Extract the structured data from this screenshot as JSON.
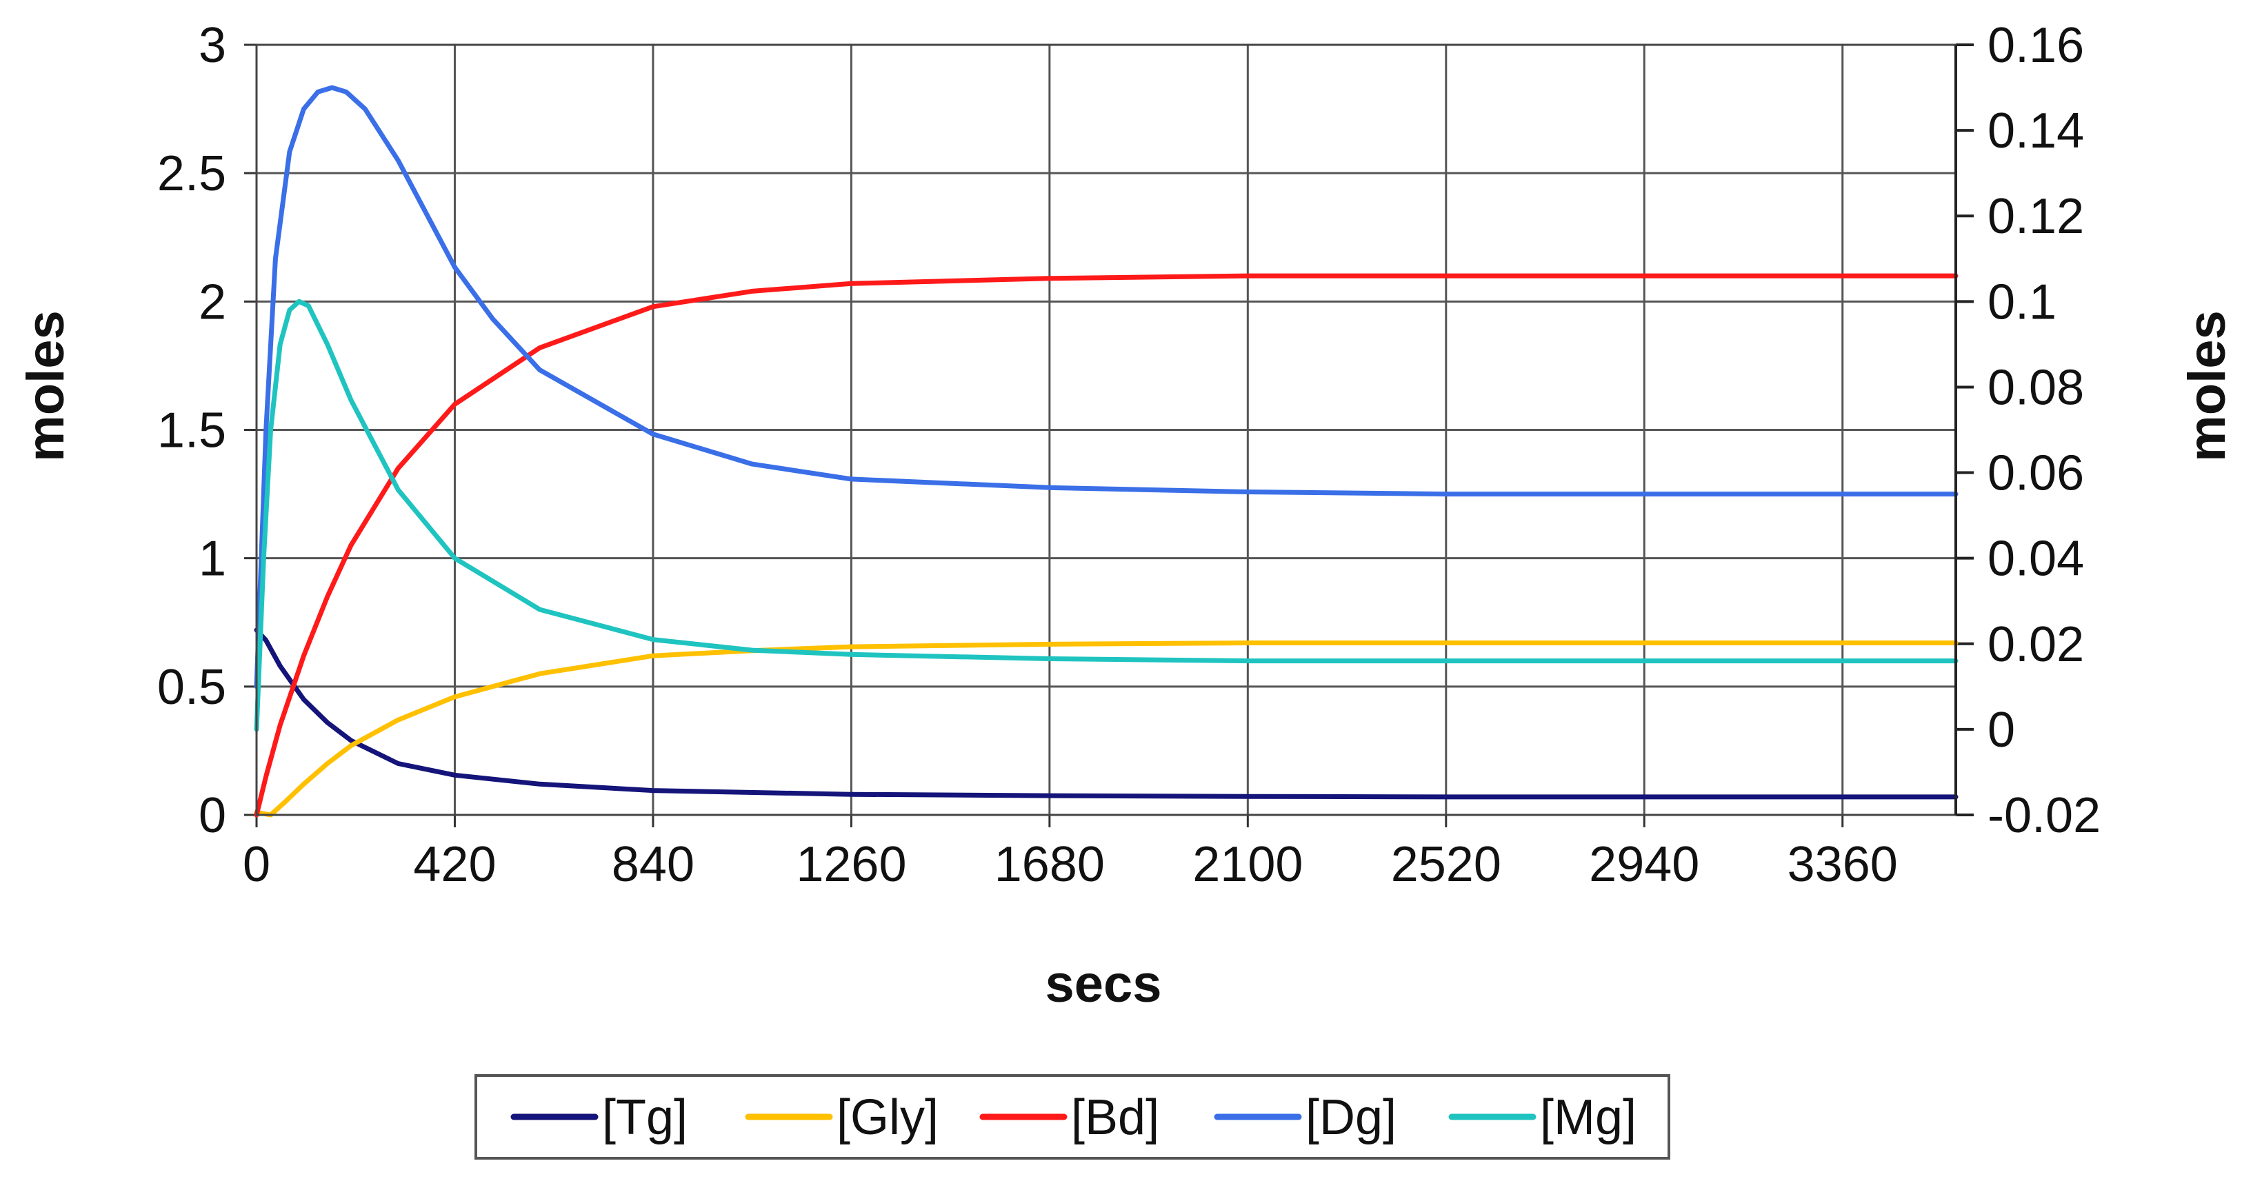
{
  "chart_data": {
    "type": "line",
    "xlabel": "secs",
    "ylabel_left": "moles",
    "ylabel_right": "moles",
    "xlim": [
      0,
      3600
    ],
    "ylim_left": [
      0,
      3
    ],
    "ylim_right": [
      -0.02,
      0.16
    ],
    "grid": true,
    "legend_position": "bottom",
    "x_ticks": [
      0,
      420,
      840,
      1260,
      1680,
      2100,
      2520,
      2940,
      3360
    ],
    "x_tick_labels": [
      "0",
      "420",
      "840",
      "1260",
      "1680",
      "2100",
      "2520",
      "2940",
      "3360"
    ],
    "y_left_ticks": [
      0,
      0.5,
      1,
      1.5,
      2,
      2.5,
      3
    ],
    "y_left_tick_labels": [
      "0",
      "0.5",
      "1",
      "1.5",
      "2",
      "2.5",
      "3"
    ],
    "y_right_ticks": [
      -0.02,
      0,
      0.02,
      0.04,
      0.06,
      0.08,
      0.1,
      0.12,
      0.14,
      0.16
    ],
    "y_right_tick_labels": [
      "-0.02",
      "0",
      "0.02",
      "0.04",
      "0.06",
      "0.08",
      "0.1",
      "0.12",
      "0.14",
      "0.16"
    ],
    "series": [
      {
        "name": "[Tg]",
        "color": "#14147a",
        "axis": "left",
        "points": [
          [
            0,
            0.72
          ],
          [
            20,
            0.68
          ],
          [
            50,
            0.58
          ],
          [
            100,
            0.45
          ],
          [
            150,
            0.36
          ],
          [
            200,
            0.29
          ],
          [
            300,
            0.2
          ],
          [
            420,
            0.155
          ],
          [
            600,
            0.12
          ],
          [
            840,
            0.095
          ],
          [
            1260,
            0.08
          ],
          [
            1680,
            0.075
          ],
          [
            2100,
            0.072
          ],
          [
            2520,
            0.07
          ],
          [
            3000,
            0.07
          ],
          [
            3600,
            0.07
          ]
        ]
      },
      {
        "name": "[Gly]",
        "color": "#ffc000",
        "axis": "left",
        "points": [
          [
            0,
            0.01
          ],
          [
            30,
            0.0
          ],
          [
            60,
            0.05
          ],
          [
            100,
            0.12
          ],
          [
            150,
            0.2
          ],
          [
            200,
            0.27
          ],
          [
            300,
            0.37
          ],
          [
            420,
            0.46
          ],
          [
            600,
            0.55
          ],
          [
            840,
            0.62
          ],
          [
            1050,
            0.64
          ],
          [
            1260,
            0.655
          ],
          [
            1680,
            0.665
          ],
          [
            2100,
            0.67
          ],
          [
            2520,
            0.67
          ],
          [
            3000,
            0.67
          ],
          [
            3600,
            0.67
          ]
        ]
      },
      {
        "name": "[Bd]",
        "color": "#ff1a1a",
        "axis": "left",
        "points": [
          [
            0,
            0.0
          ],
          [
            20,
            0.15
          ],
          [
            50,
            0.35
          ],
          [
            100,
            0.62
          ],
          [
            150,
            0.85
          ],
          [
            200,
            1.05
          ],
          [
            300,
            1.35
          ],
          [
            420,
            1.6
          ],
          [
            600,
            1.82
          ],
          [
            840,
            1.98
          ],
          [
            1050,
            2.04
          ],
          [
            1260,
            2.07
          ],
          [
            1680,
            2.09
          ],
          [
            2100,
            2.1
          ],
          [
            2520,
            2.1
          ],
          [
            3000,
            2.1
          ],
          [
            3600,
            2.1
          ]
        ]
      },
      {
        "name": "[Dg]",
        "color": "#3a6fe8",
        "axis": "right",
        "points": [
          [
            0,
            0.01
          ],
          [
            20,
            0.07
          ],
          [
            40,
            0.11
          ],
          [
            70,
            0.135
          ],
          [
            100,
            0.145
          ],
          [
            130,
            0.149
          ],
          [
            160,
            0.15
          ],
          [
            190,
            0.149
          ],
          [
            230,
            0.145
          ],
          [
            300,
            0.133
          ],
          [
            420,
            0.108
          ],
          [
            500,
            0.096
          ],
          [
            600,
            0.084
          ],
          [
            840,
            0.069
          ],
          [
            1050,
            0.062
          ],
          [
            1260,
            0.0585
          ],
          [
            1680,
            0.0565
          ],
          [
            2100,
            0.0555
          ],
          [
            2520,
            0.055
          ],
          [
            3000,
            0.055
          ],
          [
            3600,
            0.055
          ]
        ]
      },
      {
        "name": "[Mg]",
        "color": "#1fc4c0",
        "axis": "right",
        "points": [
          [
            0,
            0.0
          ],
          [
            15,
            0.04
          ],
          [
            30,
            0.07
          ],
          [
            50,
            0.09
          ],
          [
            70,
            0.098
          ],
          [
            90,
            0.1
          ],
          [
            110,
            0.099
          ],
          [
            150,
            0.09
          ],
          [
            200,
            0.077
          ],
          [
            300,
            0.056
          ],
          [
            420,
            0.04
          ],
          [
            600,
            0.028
          ],
          [
            840,
            0.021
          ],
          [
            1050,
            0.0185
          ],
          [
            1260,
            0.0175
          ],
          [
            1680,
            0.0165
          ],
          [
            2100,
            0.016
          ],
          [
            3000,
            0.016
          ],
          [
            3600,
            0.016
          ]
        ]
      }
    ]
  }
}
